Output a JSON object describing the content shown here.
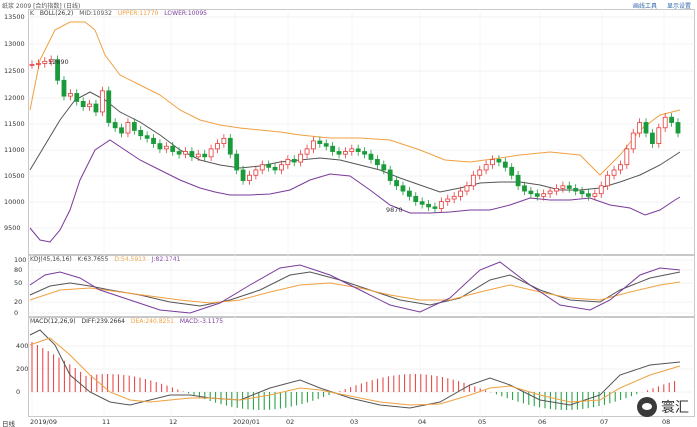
{
  "window": {
    "title": "纸浆 2009 [合约指数] (日线)",
    "links": [
      "画线工具",
      "显示设置"
    ]
  },
  "kline_panel": {
    "indicator_name": "BOLL(26,2)",
    "legend": {
      "k_label": "K",
      "mid": "MID:10932",
      "upper": "UPPER:11770",
      "lower": "LOWER:10095"
    },
    "y_axis": [
      "13500",
      "13000",
      "12500",
      "12000",
      "11500",
      "11000",
      "10500",
      "10000",
      "9500"
    ],
    "annotations": [
      {
        "text": "12690"
      },
      {
        "text": "9870"
      }
    ]
  },
  "kdj_panel": {
    "legend": {
      "name": "KDJ(45,16,16)",
      "k": "K:63.7655",
      "d": "D:54.5913",
      "j": "J:82.1741"
    },
    "y_axis": [
      "100",
      "80",
      "50",
      "20",
      "0"
    ]
  },
  "macd_panel": {
    "legend": {
      "name": "MACD(12,26,9)",
      "diff": "DIFF:239.2664",
      "dea": "DEA:240.8251",
      "macd": "MACD:-3.1175"
    },
    "y_axis": [
      "400",
      "200",
      "0"
    ]
  },
  "x_axis": {
    "labels": [
      "2019/09",
      "11",
      "12",
      "2020/01",
      "02",
      "03",
      "04",
      "05",
      "06",
      "07",
      "08"
    ]
  },
  "bottom_left_label": "日线",
  "watermark": "寰汇",
  "colors": {
    "up": "#e83a3a",
    "down": "#1a9a3a",
    "boll_upper": "#f0a040",
    "boll_mid": "#555555",
    "boll_lower": "#7a3a9a",
    "kdj_k": "#555555",
    "kdj_d": "#f0a040",
    "kdj_j": "#7a3a9a",
    "diff": "#555555",
    "dea": "#f0a040"
  }
}
